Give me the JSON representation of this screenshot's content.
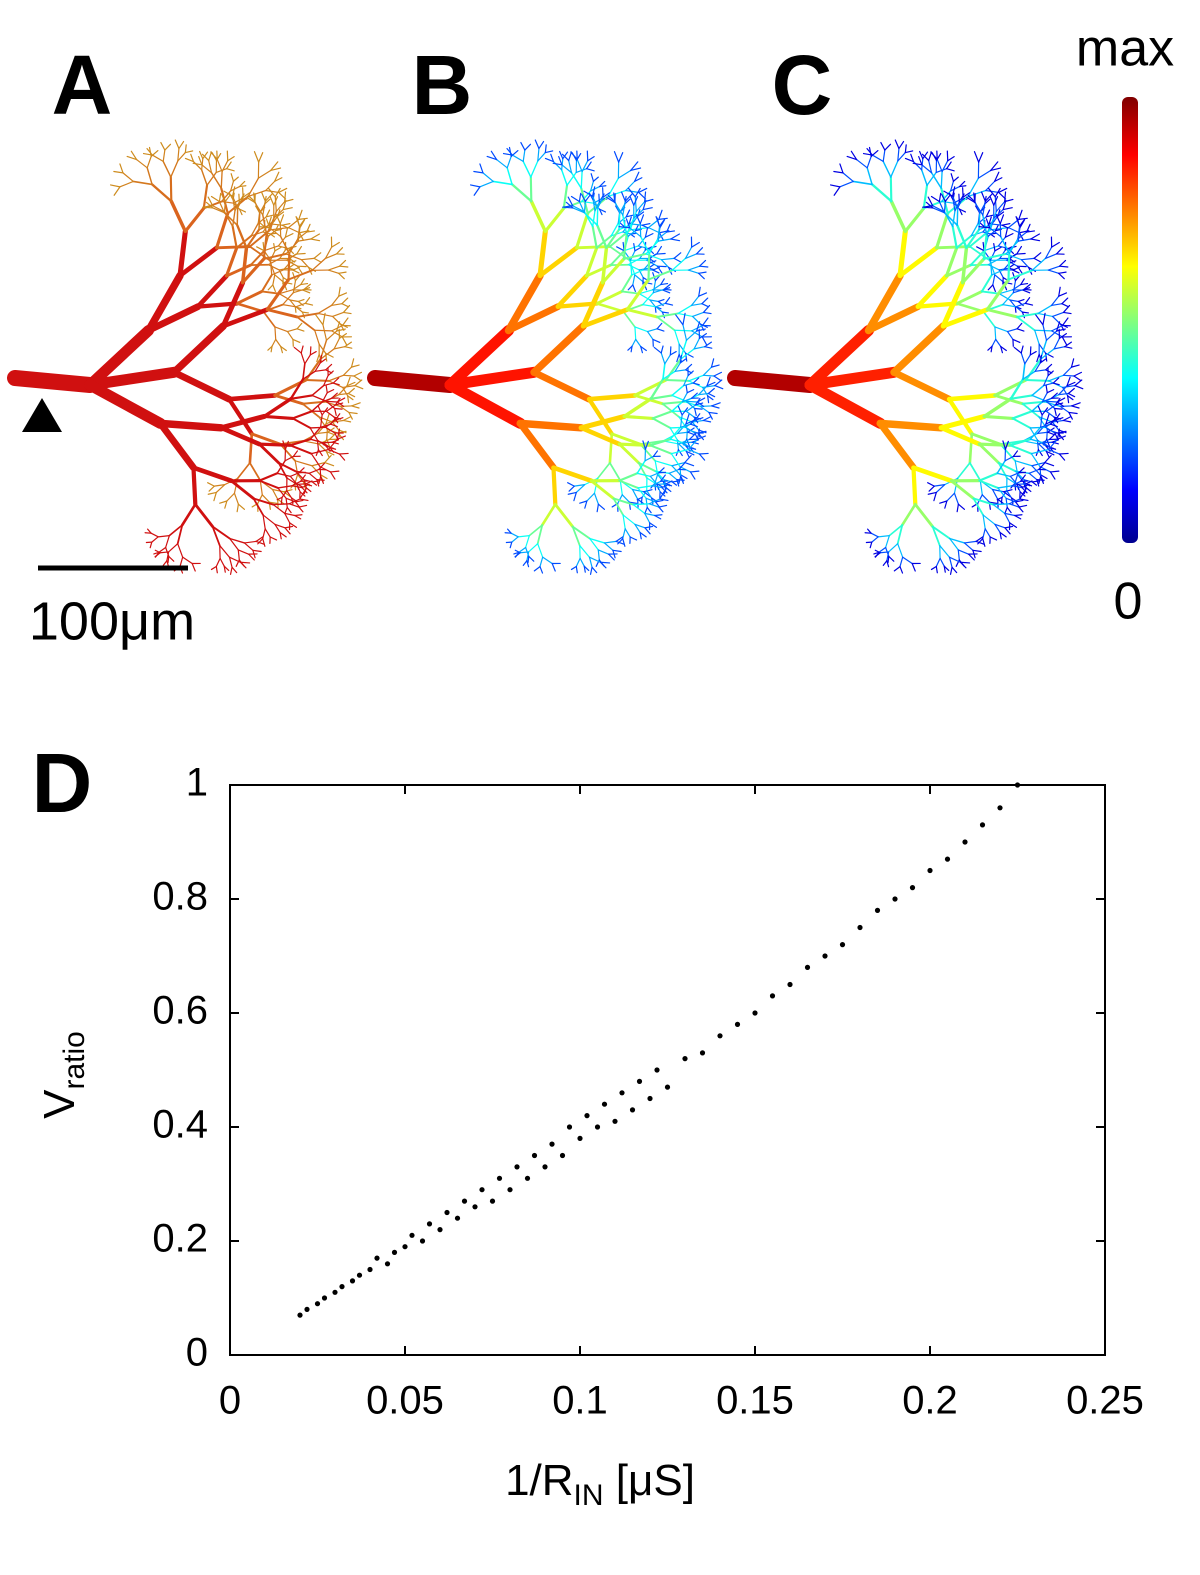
{
  "panels": {
    "labels": [
      "A",
      "B",
      "C"
    ],
    "colorbar": {
      "max_label": "max",
      "min_label": "0"
    },
    "scale_bar": "100μm"
  },
  "chart_data": {
    "type": "scatter",
    "panel_label": "D",
    "ylabel_parts": [
      "V",
      "ratio"
    ],
    "xlabel_parts": [
      "1/R",
      "IN",
      " [μS]"
    ],
    "color": "#000000",
    "xlim": [
      0,
      0.25
    ],
    "ylim": [
      0,
      1
    ],
    "xticks": [
      0,
      0.05,
      0.1,
      0.15,
      0.2,
      0.25
    ],
    "yticks": [
      0,
      0.2,
      0.4,
      0.6,
      0.8,
      1
    ],
    "x": [
      0.02,
      0.022,
      0.025,
      0.027,
      0.03,
      0.032,
      0.035,
      0.037,
      0.04,
      0.042,
      0.045,
      0.047,
      0.05,
      0.052,
      0.055,
      0.057,
      0.06,
      0.062,
      0.065,
      0.067,
      0.07,
      0.072,
      0.075,
      0.077,
      0.08,
      0.082,
      0.085,
      0.087,
      0.09,
      0.092,
      0.095,
      0.097,
      0.1,
      0.102,
      0.105,
      0.107,
      0.11,
      0.112,
      0.115,
      0.117,
      0.12,
      0.122,
      0.125,
      0.13,
      0.135,
      0.14,
      0.145,
      0.15,
      0.155,
      0.16,
      0.165,
      0.17,
      0.175,
      0.18,
      0.185,
      0.19,
      0.195,
      0.2,
      0.205,
      0.21,
      0.215,
      0.22,
      0.225
    ],
    "values": [
      0.07,
      0.08,
      0.09,
      0.1,
      0.11,
      0.12,
      0.13,
      0.14,
      0.15,
      0.17,
      0.16,
      0.18,
      0.19,
      0.21,
      0.2,
      0.23,
      0.22,
      0.25,
      0.24,
      0.27,
      0.26,
      0.29,
      0.27,
      0.31,
      0.29,
      0.33,
      0.31,
      0.35,
      0.33,
      0.37,
      0.35,
      0.4,
      0.38,
      0.42,
      0.4,
      0.44,
      0.41,
      0.46,
      0.43,
      0.48,
      0.45,
      0.5,
      0.47,
      0.52,
      0.53,
      0.56,
      0.58,
      0.6,
      0.63,
      0.65,
      0.68,
      0.7,
      0.72,
      0.75,
      0.78,
      0.8,
      0.82,
      0.85,
      0.87,
      0.9,
      0.93,
      0.96,
      1.0
    ]
  }
}
